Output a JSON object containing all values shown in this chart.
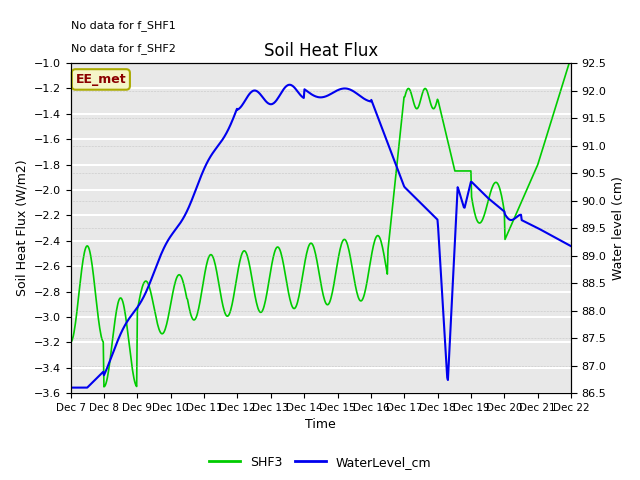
{
  "title": "Soil Heat Flux",
  "xlabel": "Time",
  "ylabel_left": "Soil Heat Flux (W/m2)",
  "ylabel_right": "Water level (cm)",
  "text_no_data": [
    "No data for f_SHF1",
    "No data for f_SHF2"
  ],
  "label_box": "EE_met",
  "ylim_left": [
    -3.6,
    -1.0
  ],
  "ylim_right": [
    86.5,
    92.5
  ],
  "yticks_left": [
    -3.6,
    -3.4,
    -3.2,
    -3.0,
    -2.8,
    -2.6,
    -2.4,
    -2.2,
    -2.0,
    -1.8,
    -1.6,
    -1.4,
    -1.2,
    -1.0
  ],
  "yticks_right": [
    86.5,
    87.0,
    87.5,
    88.0,
    88.5,
    89.0,
    89.5,
    90.0,
    90.5,
    91.0,
    91.5,
    92.0,
    92.5
  ],
  "xtick_labels": [
    "Dec 7",
    "Dec 8",
    "Dec 9",
    "Dec 10",
    "Dec 11",
    "Dec 12",
    "Dec 13",
    "Dec 14",
    "Dec 15",
    "Dec 16",
    "Dec 17",
    "Dec 18",
    "Dec 19",
    "Dec 20",
    "Dec 21",
    "Dec 22"
  ],
  "plot_bg_color": "#e8e8e8",
  "grid_color": "#ffffff",
  "shf3_color": "#00cc00",
  "water_color": "#0000ee",
  "legend_shf3": "SHF3",
  "legend_water": "WaterLevel_cm"
}
